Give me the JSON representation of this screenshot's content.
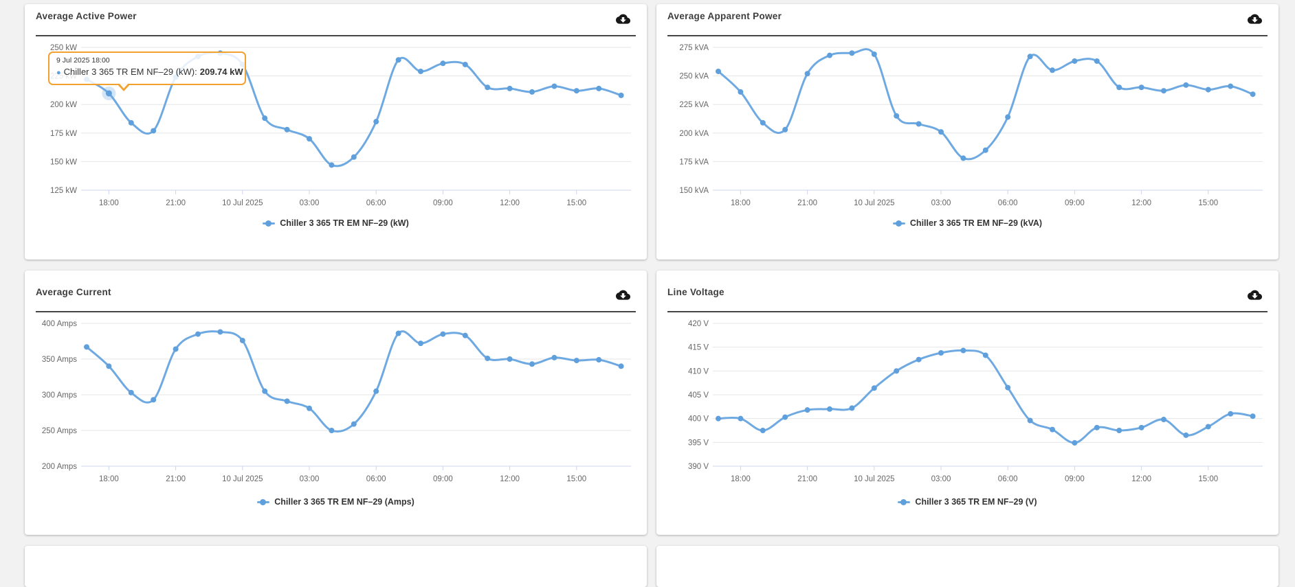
{
  "page": {
    "background": "#f2f2f3"
  },
  "colors": {
    "line": "#6ea9e2",
    "marker": "#5f9fdc",
    "grid": "#e6e6e6",
    "axis_line": "#ccd6eb",
    "tick_text": "#666666",
    "title_text": "#3d3d3d",
    "legend_text": "#333333",
    "tooltip_border": "#f2a02e",
    "divider": "#454545",
    "download_icon": "#181818"
  },
  "chart_data": [
    {
      "type": "line",
      "title": "Average Active Power",
      "series_name": "Chiller 3 365 TR EM NF–29 (kW)",
      "unit": "kW",
      "ylim": [
        125,
        250
      ],
      "y_ticks": [
        250,
        225,
        200,
        175,
        150,
        125
      ],
      "y_tick_labels": [
        "250 kW",
        "225 kW",
        "200 kW",
        "175 kW",
        "150 kW",
        "125 kW"
      ],
      "x_tick_labels": [
        "18:00",
        "21:00",
        "10 Jul 2025",
        "03:00",
        "06:00",
        "09:00",
        "12:00",
        "15:00"
      ],
      "x_tick_indices": [
        1,
        4,
        7,
        10,
        13,
        16,
        19,
        22
      ],
      "x_start": "9 Jul 2025 17:00",
      "x_interval_hours": 1,
      "values": [
        222,
        209.74,
        184,
        177,
        224,
        242,
        245,
        235,
        188,
        178,
        170,
        147,
        154,
        185,
        239,
        229,
        236,
        235,
        215,
        214,
        211,
        216,
        212,
        214,
        208
      ],
      "line_color": "#6ea9e2",
      "marker_color": "#5f9fdc",
      "grid": true,
      "legend_position": "bottom-center",
      "highlight_index": 1,
      "tooltip": {
        "date": "9 Jul 2025 18:00",
        "bullet": "●",
        "label": "Chiller 3 365 TR EM NF–29 (kW):",
        "value": "209.74 kW"
      }
    },
    {
      "type": "line",
      "title": "Average Apparent Power",
      "series_name": "Chiller 3 365 TR EM NF–29 (kVA)",
      "unit": "kVA",
      "ylim": [
        150,
        275
      ],
      "y_ticks": [
        275,
        250,
        225,
        200,
        175,
        150
      ],
      "y_tick_labels": [
        "275 kVA",
        "250 kVA",
        "225 kVA",
        "200 kVA",
        "175 kVA",
        "150 kVA"
      ],
      "x_tick_labels": [
        "18:00",
        "21:00",
        "10 Jul 2025",
        "03:00",
        "06:00",
        "09:00",
        "12:00",
        "15:00"
      ],
      "x_tick_indices": [
        1,
        4,
        7,
        10,
        13,
        16,
        19,
        22
      ],
      "x_start": "9 Jul 2025 17:00",
      "x_interval_hours": 1,
      "values": [
        254,
        236,
        209,
        203,
        252,
        268,
        270,
        269,
        215,
        208,
        201,
        178,
        185,
        214,
        267,
        255,
        263,
        263,
        240,
        240,
        237,
        242,
        238,
        241,
        234
      ],
      "line_color": "#6ea9e2",
      "marker_color": "#5f9fdc",
      "grid": true,
      "legend_position": "bottom-center"
    },
    {
      "type": "line",
      "title": "Average Current",
      "series_name": "Chiller 3 365 TR EM NF–29 (Amps)",
      "unit": "Amps",
      "ylim": [
        200,
        400
      ],
      "y_ticks": [
        400,
        350,
        300,
        250,
        200
      ],
      "y_tick_labels": [
        "400 Amps",
        "350 Amps",
        "300 Amps",
        "250 Amps",
        "200 Amps"
      ],
      "x_tick_labels": [
        "18:00",
        "21:00",
        "10 Jul 2025",
        "03:00",
        "06:00",
        "09:00",
        "12:00",
        "15:00"
      ],
      "x_tick_indices": [
        1,
        4,
        7,
        10,
        13,
        16,
        19,
        22
      ],
      "x_start": "9 Jul 2025 17:00",
      "x_interval_hours": 1,
      "values": [
        367,
        340,
        303,
        293,
        364,
        385,
        388,
        376,
        305,
        291,
        281,
        250,
        259,
        305,
        386,
        372,
        385,
        383,
        351,
        350,
        343,
        352,
        348,
        349,
        340
      ],
      "line_color": "#6ea9e2",
      "marker_color": "#5f9fdc",
      "grid": true,
      "legend_position": "bottom-center"
    },
    {
      "type": "line",
      "title": "Line Voltage",
      "series_name": "Chiller 3 365 TR EM NF–29 (V)",
      "unit": "V",
      "ylim": [
        390,
        420
      ],
      "y_ticks": [
        420,
        415,
        410,
        405,
        400,
        395,
        390
      ],
      "y_tick_labels": [
        "420 V",
        "415 V",
        "410 V",
        "405 V",
        "400 V",
        "395 V",
        "390 V"
      ],
      "x_tick_labels": [
        "18:00",
        "21:00",
        "10 Jul 2025",
        "03:00",
        "06:00",
        "09:00",
        "12:00",
        "15:00"
      ],
      "x_tick_indices": [
        1,
        4,
        7,
        10,
        13,
        16,
        19,
        22
      ],
      "x_start": "9 Jul 2025 17:00",
      "x_interval_hours": 1,
      "values": [
        400,
        400,
        397.5,
        400.3,
        401.8,
        402,
        402.2,
        406.4,
        410,
        412.4,
        413.8,
        414.3,
        413.3,
        406.5,
        399.6,
        397.7,
        394.9,
        398.1,
        397.5,
        398.1,
        399.8,
        396.5,
        398.3,
        401,
        400.5
      ],
      "line_color": "#6ea9e2",
      "marker_color": "#5f9fdc",
      "grid": true,
      "legend_position": "bottom-center"
    }
  ]
}
